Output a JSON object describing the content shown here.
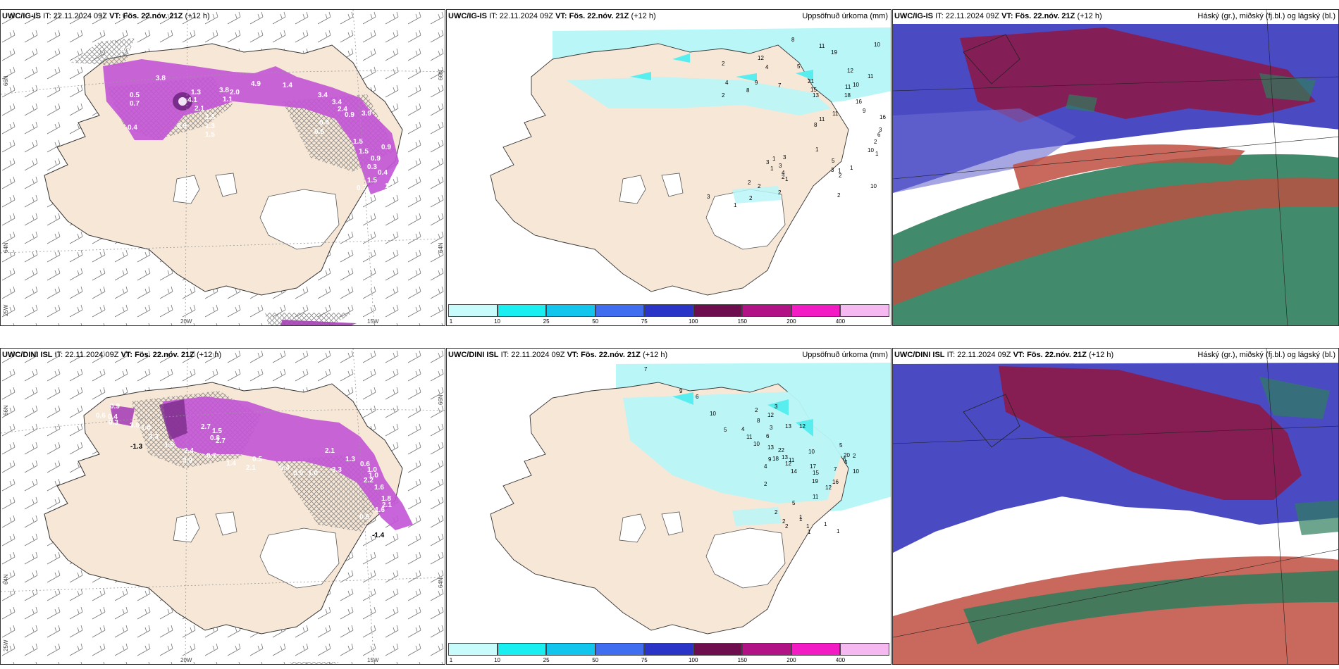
{
  "panels": {
    "p1": {
      "model": "UWC/IG-IS",
      "it_label": "IT:",
      "it": "22.11.2024 09Z",
      "vt_label": "VT:",
      "vt": "Fös. 22.nóv. 21Z",
      "lead": "(+12 h)",
      "lat_labels": [
        "66N",
        "64N",
        "66N",
        "64N"
      ],
      "lon_labels": [
        "25W",
        "20W",
        "15W"
      ],
      "values": [
        "0.7",
        "3.8",
        "0.5",
        "0.7",
        "1.3",
        "4.1",
        "2.1",
        "1.8",
        "1.3",
        "1.5",
        "0.9",
        "3.8",
        "1.1",
        "2.0",
        "4.9",
        "1.4",
        "3.4",
        "3.4",
        "2.4",
        "0.9",
        "3.9",
        "0.4",
        "0.5",
        "1.5",
        "1.5",
        "0.9",
        "0.9",
        "0.3",
        "0.4",
        "1.5",
        "1.1",
        "3.8",
        "0.7",
        "0.4"
      ]
    },
    "p2": {
      "model": "UWC/IG-IS",
      "it_label": "IT:",
      "it": "22.11.2024 09Z",
      "vt_label": "VT:",
      "vt": "Fös. 22.nóv. 21Z",
      "lead": "(+12 h)",
      "right_title": "Uppsöfnuð úrkoma (mm)",
      "values": [
        "8",
        "10",
        "11",
        "19",
        "12",
        "2",
        "4",
        "5",
        "12",
        "11",
        "4",
        "9",
        "10",
        "21",
        "7",
        "8",
        "11",
        "18",
        "15",
        "13",
        "16",
        "2",
        "11",
        "11",
        "16",
        "9",
        "8",
        "3",
        "6",
        "2",
        "10",
        "1",
        "5",
        "3",
        "1",
        "2",
        "1",
        "1",
        "10",
        "1",
        "2",
        "3",
        "3",
        "1",
        "1",
        "3",
        "4",
        "2",
        "2",
        "2",
        "2",
        "2",
        "1",
        "3"
      ]
    },
    "p3": {
      "model": "UWC/IG-IS",
      "it_label": "IT:",
      "it": "22.11.2024 09Z",
      "vt_label": "VT:",
      "vt": "Fös. 22.nóv. 21Z",
      "lead": "(+12 h)",
      "right_title": "Háský (gr.), miðský (fj.bl.) og lágský (bl.)"
    },
    "p4": {
      "model": "UWC/DINI ISL",
      "it_label": "IT:",
      "it": "22.11.2024 09Z",
      "vt_label": "VT:",
      "vt": "Fös. 22.nóv. 21Z",
      "lead": "(+12 h)",
      "lat_labels": [
        "66N",
        "64N",
        "66N",
        "64N"
      ],
      "lon_labels": [
        "25W",
        "20W",
        "15W"
      ],
      "values": [
        "0.9",
        "0.3",
        "0.6",
        "0.4",
        "3.6",
        "1.8",
        "3.3",
        "1.8",
        "2.4",
        "3.9",
        "0.8",
        "2.7",
        "1.5",
        "2.7",
        "0.7",
        "1.4",
        "2.1",
        "0.5",
        "5.4",
        "0.9",
        "1.0",
        "3.3",
        "2.1",
        "1.3",
        "0.6",
        "1.0",
        "1.0",
        "2.2",
        "1.6",
        "1.8",
        "2.1",
        "1.6",
        "0.8",
        "-1.4",
        "-1.3"
      ]
    },
    "p5": {
      "model": "UWC/DINI ISL",
      "it_label": "IT:",
      "it": "22.11.2024 09Z",
      "vt_label": "VT:",
      "vt": "Fös. 22.nóv. 21Z",
      "lead": "(+12 h)",
      "right_title": "Uppsöfnuð úrkoma (mm)",
      "values": [
        "7",
        "9",
        "6",
        "10",
        "2",
        "3",
        "12",
        "13",
        "12",
        "8",
        "10",
        "22",
        "18",
        "13",
        "12",
        "14",
        "17",
        "3",
        "4",
        "5",
        "6",
        "13",
        "10",
        "11",
        "20",
        "6",
        "5",
        "9",
        "11",
        "4",
        "15",
        "2",
        "4",
        "19",
        "16",
        "12",
        "2",
        "1",
        "5",
        "11",
        "1",
        "2",
        "2",
        "2",
        "1",
        "1",
        "1",
        "1",
        "10",
        "7"
      ]
    },
    "p6": {
      "model": "UWC/DINI ISL",
      "it_label": "IT:",
      "it": "22.11.2024 09Z",
      "vt_label": "VT:",
      "vt": "Fös. 22.nóv. 21Z",
      "lead": "(+12 h)",
      "right_title": "Háský (gr.), miðský (fj.bl.) og lágský (bl.)"
    }
  },
  "colorbar": {
    "ticks": [
      "1",
      "10",
      "25",
      "50",
      "75",
      "100",
      "150",
      "200",
      "400"
    ],
    "colors": [
      "#c8fbfb",
      "#19eef0",
      "#12c5ec",
      "#3f6ff0",
      "#2a35c8",
      "#6e0e4e",
      "#b11387",
      "#f21bc4",
      "#f6b8f0"
    ]
  },
  "palette": {
    "land": "#f7e7d7",
    "sea": "#ffffff",
    "precip_light": "#b8f6f8",
    "precip_mid": "#58eef0",
    "purple": "#c254d6",
    "purple_dark": "#7a2c8a",
    "cloud_high": "#8b1a4a",
    "cloud_mid": "#4a4bc2",
    "cloud_low": "#2e7d5c"
  }
}
